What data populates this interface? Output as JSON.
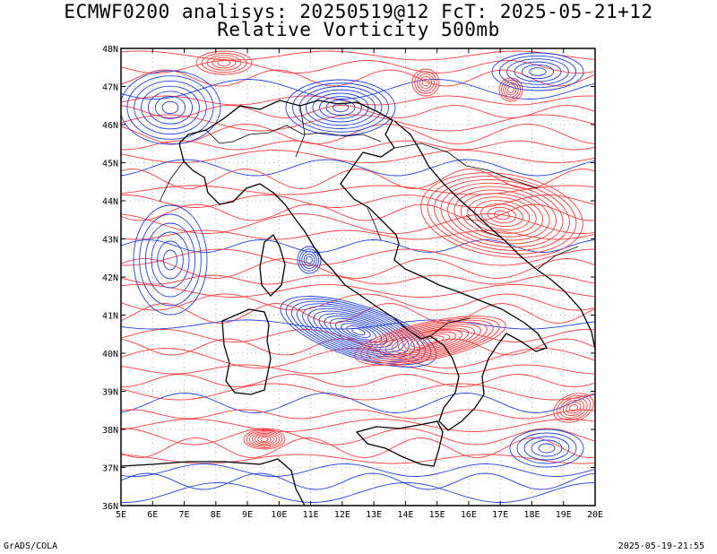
{
  "title_line1": "ECMWF0200 analisys: 20250519@12 FcT: 2025-05-21+12",
  "title_line2": "Relative Vorticity 500mb",
  "footer_left": "GrADS/COLA",
  "footer_right": "2025-05-19-21:55",
  "lon_labels": [
    "5E",
    "6E",
    "7E",
    "8E",
    "9E",
    "10E",
    "11E",
    "12E",
    "13E",
    "14E",
    "15E",
    "16E",
    "17E",
    "18E",
    "19E",
    "20E"
  ],
  "lat_labels": [
    "48N",
    "47N",
    "46N",
    "45N",
    "44N",
    "43N",
    "42N",
    "41N",
    "40N",
    "39N",
    "38N",
    "37N",
    "36N"
  ],
  "colors": {
    "positive": "#ff3c3c",
    "negative": "#2040e0",
    "coast": "#000000",
    "grid": "#999999"
  }
}
